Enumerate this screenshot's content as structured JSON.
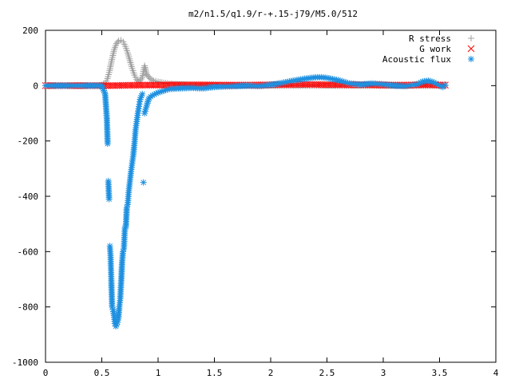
{
  "chart_data": {
    "type": "scatter",
    "title": "m2/n1.5/q1.9/r-+.15-j79/M5.0/512",
    "xlabel": "",
    "ylabel": "",
    "xlim": [
      0,
      4
    ],
    "ylim": [
      -1000,
      200
    ],
    "grid": false,
    "legend_position": "top-right",
    "x_ticks": [
      "0",
      "0.5",
      "1",
      "1.5",
      "2",
      "2.5",
      "3",
      "3.5",
      "4"
    ],
    "y_ticks": [
      "200",
      "0",
      "-200",
      "-400",
      "-600",
      "-800",
      "-1000"
    ],
    "series": [
      {
        "name": "R stress",
        "marker": "plus",
        "color": "#a0a0a0",
        "points": [
          [
            0.0,
            0
          ],
          [
            0.1,
            0
          ],
          [
            0.2,
            0
          ],
          [
            0.3,
            0
          ],
          [
            0.4,
            0
          ],
          [
            0.5,
            2
          ],
          [
            0.53,
            8
          ],
          [
            0.55,
            25
          ],
          [
            0.57,
            55
          ],
          [
            0.59,
            95
          ],
          [
            0.61,
            130
          ],
          [
            0.63,
            152
          ],
          [
            0.65,
            162
          ],
          [
            0.67,
            164
          ],
          [
            0.69,
            158
          ],
          [
            0.71,
            142
          ],
          [
            0.73,
            118
          ],
          [
            0.75,
            90
          ],
          [
            0.77,
            62
          ],
          [
            0.79,
            38
          ],
          [
            0.81,
            22
          ],
          [
            0.83,
            12
          ],
          [
            0.86,
            30
          ],
          [
            0.88,
            72
          ],
          [
            0.9,
            40
          ],
          [
            0.93,
            25
          ],
          [
            0.96,
            18
          ],
          [
            1.0,
            14
          ],
          [
            1.05,
            10
          ],
          [
            1.1,
            7
          ],
          [
            1.2,
            4
          ],
          [
            1.3,
            2
          ],
          [
            1.5,
            1
          ],
          [
            1.8,
            0
          ],
          [
            2.0,
            0
          ],
          [
            2.5,
            0
          ],
          [
            3.0,
            0
          ],
          [
            3.5,
            0
          ],
          [
            3.55,
            0
          ]
        ]
      },
      {
        "name": "G work",
        "marker": "cross",
        "color": "#ff0000",
        "points": [
          [
            0.0,
            0
          ],
          [
            0.3,
            0
          ],
          [
            0.55,
            0
          ],
          [
            0.7,
            1
          ],
          [
            0.9,
            2
          ],
          [
            1.0,
            2
          ],
          [
            1.2,
            3
          ],
          [
            1.4,
            3
          ],
          [
            1.6,
            2
          ],
          [
            1.8,
            2
          ],
          [
            2.0,
            3
          ],
          [
            2.2,
            4
          ],
          [
            2.4,
            4
          ],
          [
            2.6,
            3
          ],
          [
            2.8,
            3
          ],
          [
            3.0,
            2
          ],
          [
            3.2,
            2
          ],
          [
            3.4,
            3
          ],
          [
            3.55,
            2
          ]
        ]
      },
      {
        "name": "Acoustic flux",
        "marker": "star",
        "color": "#1e90e0",
        "points": [
          [
            0.0,
            0
          ],
          [
            0.1,
            0
          ],
          [
            0.2,
            0
          ],
          [
            0.3,
            0
          ],
          [
            0.4,
            0
          ],
          [
            0.5,
            0
          ],
          [
            0.53,
            -30
          ],
          [
            0.545,
            -120
          ],
          [
            0.552,
            -210
          ],
          [
            0.558,
            -345
          ],
          [
            0.565,
            -410
          ],
          [
            0.572,
            -580
          ],
          [
            0.578,
            -615
          ],
          [
            0.585,
            -710
          ],
          [
            0.592,
            -800
          ],
          [
            0.6,
            -810
          ],
          [
            0.608,
            -830
          ],
          [
            0.616,
            -860
          ],
          [
            0.624,
            -870
          ],
          [
            0.632,
            -865
          ],
          [
            0.64,
            -855
          ],
          [
            0.648,
            -840
          ],
          [
            0.656,
            -800
          ],
          [
            0.664,
            -770
          ],
          [
            0.672,
            -710
          ],
          [
            0.68,
            -640
          ],
          [
            0.688,
            -600
          ],
          [
            0.696,
            -590
          ],
          [
            0.705,
            -515
          ],
          [
            0.714,
            -510
          ],
          [
            0.722,
            -440
          ],
          [
            0.73,
            -430
          ],
          [
            0.74,
            -380
          ],
          [
            0.75,
            -345
          ],
          [
            0.76,
            -310
          ],
          [
            0.77,
            -280
          ],
          [
            0.78,
            -250
          ],
          [
            0.79,
            -210
          ],
          [
            0.8,
            -160
          ],
          [
            0.81,
            -130
          ],
          [
            0.82,
            -100
          ],
          [
            0.83,
            -75
          ],
          [
            0.84,
            -50
          ],
          [
            0.86,
            -30
          ],
          [
            0.87,
            -350
          ],
          [
            0.88,
            -100
          ],
          [
            0.9,
            -70
          ],
          [
            0.92,
            -45
          ],
          [
            0.95,
            -35
          ],
          [
            1.0,
            -25
          ],
          [
            1.1,
            -12
          ],
          [
            1.2,
            -10
          ],
          [
            1.3,
            -8
          ],
          [
            1.4,
            -10
          ],
          [
            1.5,
            -5
          ],
          [
            1.6,
            -3
          ],
          [
            1.7,
            -2
          ],
          [
            1.8,
            0
          ],
          [
            1.9,
            -2
          ],
          [
            2.0,
            3
          ],
          [
            2.1,
            10
          ],
          [
            2.2,
            18
          ],
          [
            2.3,
            25
          ],
          [
            2.4,
            30
          ],
          [
            2.45,
            30
          ],
          [
            2.5,
            28
          ],
          [
            2.6,
            20
          ],
          [
            2.7,
            8
          ],
          [
            2.8,
            4
          ],
          [
            2.9,
            8
          ],
          [
            3.0,
            5
          ],
          [
            3.1,
            0
          ],
          [
            3.2,
            -2
          ],
          [
            3.3,
            5
          ],
          [
            3.35,
            15
          ],
          [
            3.4,
            18
          ],
          [
            3.45,
            12
          ],
          [
            3.5,
            0
          ],
          [
            3.53,
            -5
          ],
          [
            3.55,
            3
          ]
        ]
      }
    ]
  }
}
